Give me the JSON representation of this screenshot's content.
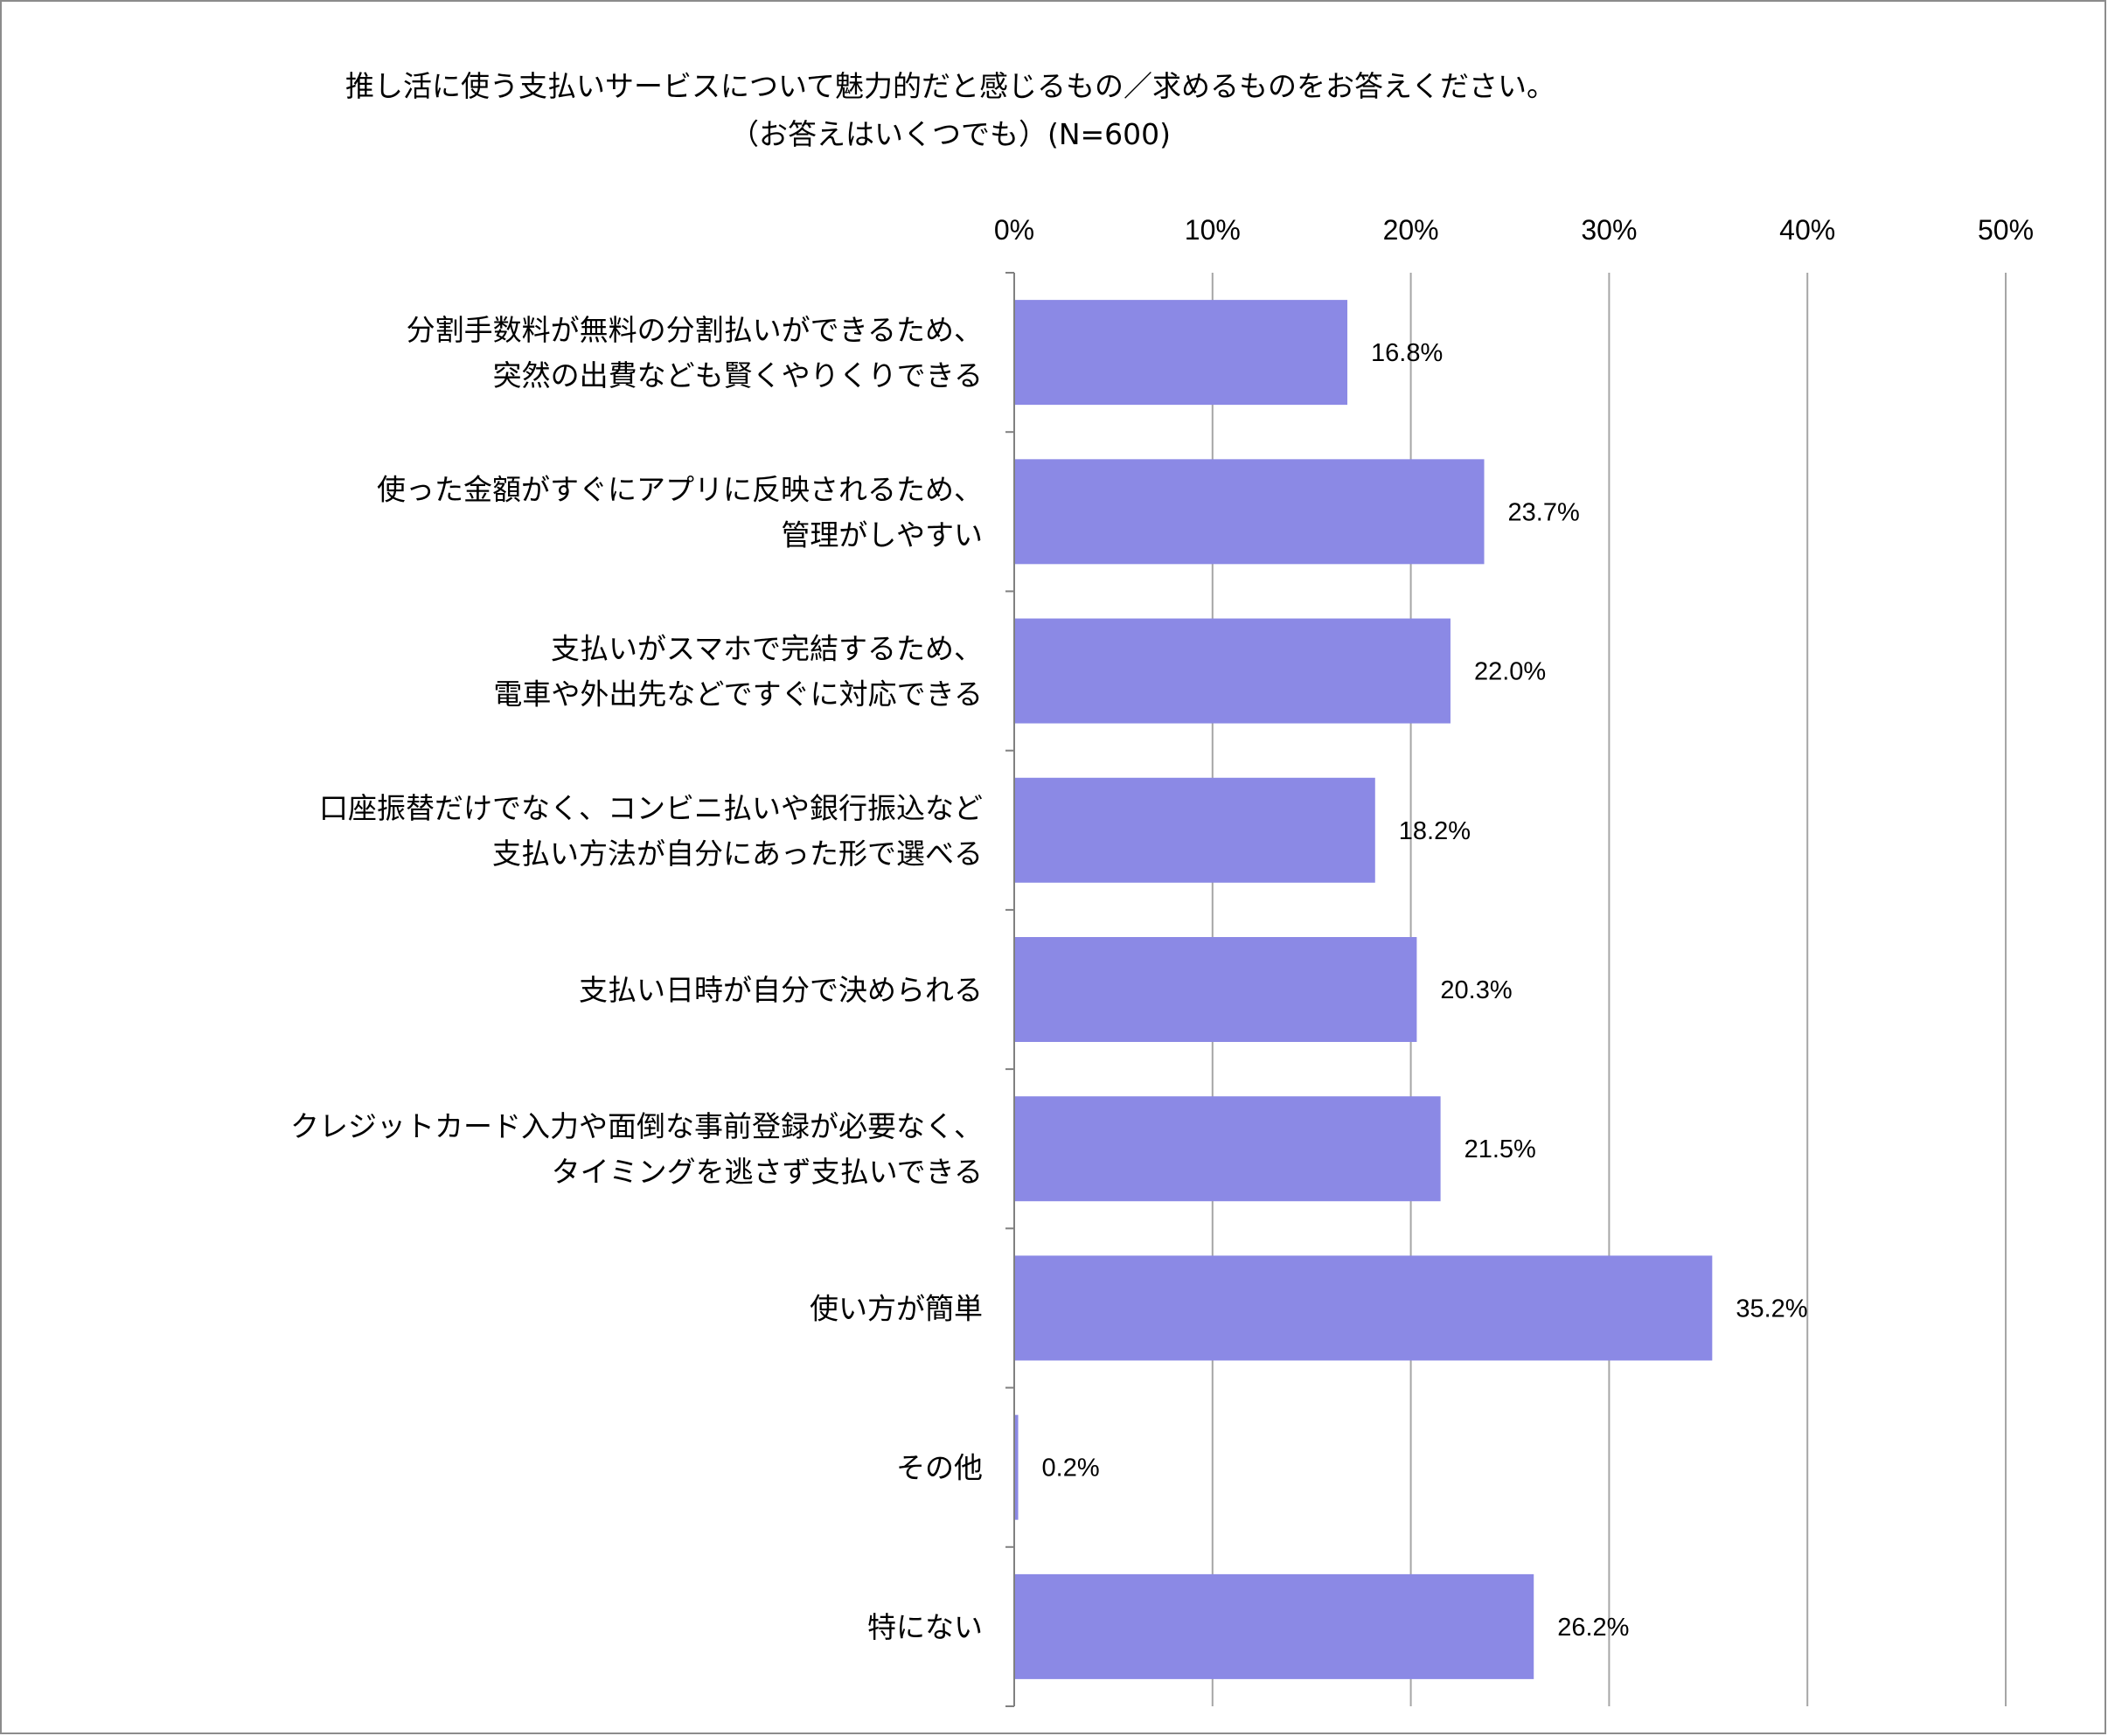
{
  "chart_data": {
    "type": "bar",
    "orientation": "horizontal",
    "title": "推し活に使う支払いサービスについて魅力的だと感じるもの／求めるものをお答えください。",
    "subtitle": "（お答えはいくつでも）(N=600)",
    "xlim": [
      0,
      50
    ],
    "x_ticks": [
      "0%",
      "10%",
      "20%",
      "30%",
      "40%",
      "50%"
    ],
    "x_axis_position": "top",
    "grid": true,
    "legend": "none",
    "bar_color": "#8b89e5",
    "categories": [
      [
        "分割手数料が無料の分割払いができるため、",
        "突然の出費なども賢くやりくりできる"
      ],
      [
        "使った金額がすぐにアプリに反映されるため、",
        "管理がしやすい"
      ],
      [
        "支払いがスマホで完結するため、",
        "電車や外出先などですぐに対応できる"
      ],
      [
        "口座振替だけでなく、コンビニ払いや銀行振込など",
        "支払い方法が自分にあった形で選べる"
      ],
      [
        "支払い日時が自分で決められる"
      ],
      [
        "クレジットカード入力や面倒な事前登録が必要なく、",
        "タイミングを逃さず支払いできる"
      ],
      [
        "使い方が簡単"
      ],
      [
        "その他"
      ],
      [
        "特にない"
      ]
    ],
    "values": [
      16.8,
      23.7,
      22.0,
      18.2,
      20.3,
      21.5,
      35.2,
      0.2,
      26.2
    ],
    "value_labels": [
      "16.8%",
      "23.7%",
      "22.0%",
      "18.2%",
      "20.3%",
      "21.5%",
      "35.2%",
      "0.2%",
      "26.2%"
    ]
  }
}
